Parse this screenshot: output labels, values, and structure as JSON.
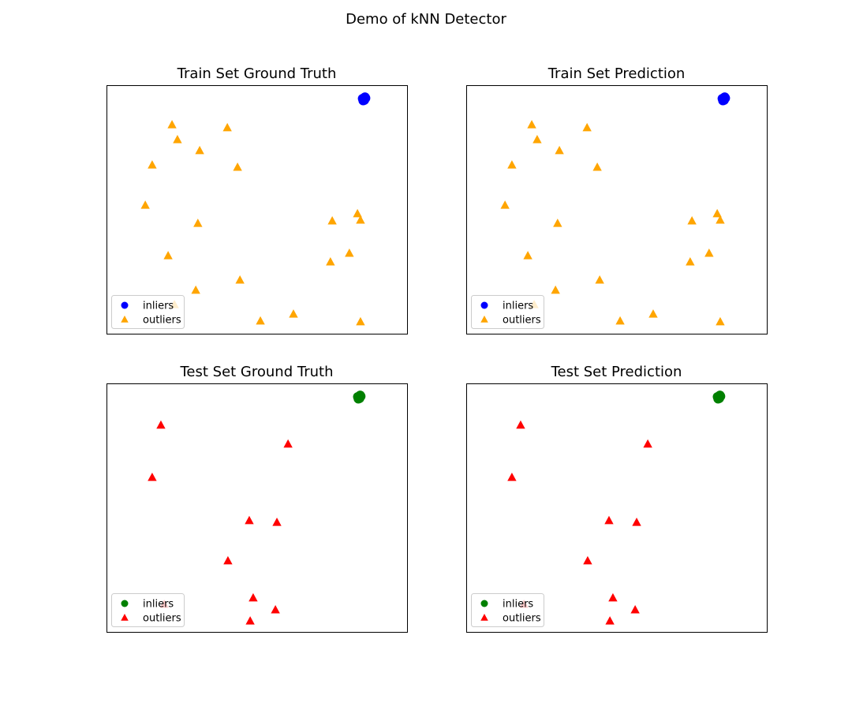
{
  "title": "Demo of kNN Detector",
  "chart_data": [
    {
      "type": "scatter",
      "title": "Train Set Ground Truth",
      "xlim": [
        0,
        100
      ],
      "ylim": [
        0,
        100
      ],
      "grid": false,
      "ticks": false,
      "legend": {
        "placement": "lower-left",
        "entries": [
          "inliers",
          "outliers"
        ]
      },
      "series": [
        {
          "name": "inliers",
          "color": "#0000ff",
          "marker": "circle",
          "points": [
            [
              85.2,
              94.6
            ],
            [
              85.8,
              94.0
            ],
            [
              86.2,
              94.8
            ],
            [
              85.4,
              93.8
            ],
            [
              86.0,
              95.2
            ],
            [
              85.6,
              94.3
            ]
          ]
        },
        {
          "name": "outliers",
          "color": "#ffa500",
          "marker": "triangle",
          "points": [
            [
              21.8,
              84.1
            ],
            [
              40.2,
              82.9
            ],
            [
              23.6,
              78.1
            ],
            [
              31.0,
              73.7
            ],
            [
              15.2,
              67.9
            ],
            [
              43.6,
              67.0
            ],
            [
              12.9,
              51.7
            ],
            [
              30.4,
              44.4
            ],
            [
              75.1,
              45.4
            ],
            [
              83.5,
              48.3
            ],
            [
              84.5,
              45.7
            ],
            [
              20.5,
              31.4
            ],
            [
              80.8,
              32.4
            ],
            [
              74.5,
              28.9
            ],
            [
              44.4,
              21.6
            ],
            [
              29.7,
              17.5
            ],
            [
              22.6,
              11.7
            ],
            [
              62.2,
              7.9
            ],
            [
              51.2,
              5.1
            ],
            [
              84.5,
              4.8
            ]
          ]
        }
      ]
    },
    {
      "type": "scatter",
      "title": "Train Set Prediction",
      "xlim": [
        0,
        100
      ],
      "ylim": [
        0,
        100
      ],
      "grid": false,
      "ticks": false,
      "legend": {
        "placement": "lower-left",
        "entries": [
          "inliers",
          "outliers"
        ]
      },
      "series": [
        {
          "name": "inliers",
          "color": "#0000ff",
          "marker": "circle",
          "points": [
            [
              85.2,
              94.6
            ],
            [
              85.8,
              94.0
            ],
            [
              86.2,
              94.8
            ],
            [
              85.4,
              93.8
            ],
            [
              86.0,
              95.2
            ],
            [
              85.6,
              94.3
            ]
          ]
        },
        {
          "name": "outliers",
          "color": "#ffa500",
          "marker": "triangle",
          "points": [
            [
              21.8,
              84.1
            ],
            [
              40.2,
              82.9
            ],
            [
              23.6,
              78.1
            ],
            [
              31.0,
              73.7
            ],
            [
              15.2,
              67.9
            ],
            [
              43.6,
              67.0
            ],
            [
              12.9,
              51.7
            ],
            [
              30.4,
              44.4
            ],
            [
              75.1,
              45.4
            ],
            [
              83.5,
              48.3
            ],
            [
              84.5,
              45.7
            ],
            [
              20.5,
              31.4
            ],
            [
              80.8,
              32.4
            ],
            [
              74.5,
              28.9
            ],
            [
              44.4,
              21.6
            ],
            [
              29.7,
              17.5
            ],
            [
              22.6,
              11.7
            ],
            [
              62.2,
              7.9
            ],
            [
              51.2,
              5.1
            ],
            [
              84.5,
              4.8
            ]
          ]
        }
      ]
    },
    {
      "type": "scatter",
      "title": "Test Set Ground Truth",
      "xlim": [
        0,
        100
      ],
      "ylim": [
        0,
        100
      ],
      "grid": false,
      "ticks": false,
      "legend": {
        "placement": "lower-left",
        "entries": [
          "inliers",
          "outliers"
        ]
      },
      "series": [
        {
          "name": "inliers",
          "color": "#008000",
          "marker": "circle",
          "points": [
            [
              83.6,
              94.6
            ],
            [
              84.2,
              94.0
            ],
            [
              84.6,
              94.8
            ],
            [
              83.8,
              93.8
            ],
            [
              84.4,
              95.2
            ],
            [
              84.0,
              94.3
            ]
          ]
        },
        {
          "name": "outliers",
          "color": "#ff0000",
          "marker": "triangle",
          "points": [
            [
              18.1,
              83.2
            ],
            [
              60.4,
              75.6
            ],
            [
              15.2,
              62.2
            ],
            [
              47.5,
              44.8
            ],
            [
              56.7,
              44.1
            ],
            [
              40.4,
              28.6
            ],
            [
              48.8,
              13.7
            ],
            [
              56.2,
              8.9
            ],
            [
              47.8,
              4.4
            ],
            [
              19.2,
              11.1
            ]
          ]
        }
      ]
    },
    {
      "type": "scatter",
      "title": "Test Set Prediction",
      "xlim": [
        0,
        100
      ],
      "ylim": [
        0,
        100
      ],
      "grid": false,
      "ticks": false,
      "legend": {
        "placement": "lower-left",
        "entries": [
          "inliers",
          "outliers"
        ]
      },
      "series": [
        {
          "name": "inliers",
          "color": "#008000",
          "marker": "circle",
          "points": [
            [
              83.6,
              94.6
            ],
            [
              84.2,
              94.0
            ],
            [
              84.6,
              94.8
            ],
            [
              83.8,
              93.8
            ],
            [
              84.4,
              95.2
            ],
            [
              84.0,
              94.3
            ]
          ]
        },
        {
          "name": "outliers",
          "color": "#ff0000",
          "marker": "triangle",
          "points": [
            [
              18.1,
              83.2
            ],
            [
              60.4,
              75.6
            ],
            [
              15.2,
              62.2
            ],
            [
              47.5,
              44.8
            ],
            [
              56.7,
              44.1
            ],
            [
              40.4,
              28.6
            ],
            [
              48.8,
              13.7
            ],
            [
              56.2,
              8.9
            ],
            [
              47.8,
              4.4
            ],
            [
              19.2,
              11.1
            ]
          ]
        }
      ]
    }
  ]
}
